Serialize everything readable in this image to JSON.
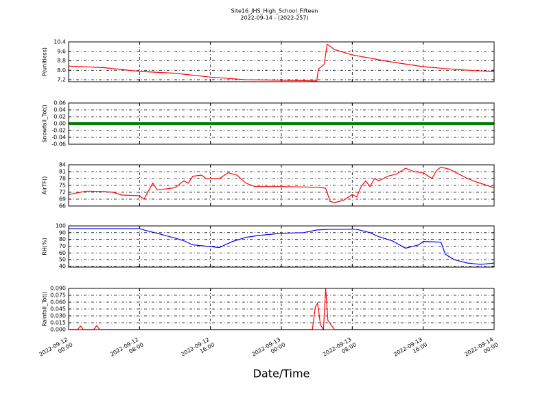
{
  "title": "Site16_JHS_High_School_Fifteen",
  "subtitle": "2022-09-14 - (2022-257)",
  "x_axis": {
    "label": "Date/Time",
    "lim": [
      "2022-09-12 00:00",
      "2022-09-14 00:00"
    ],
    "ticks": [
      {
        "value": "2022-09-12 00:00",
        "label": "2022-09-12 00:00"
      },
      {
        "value": "2022-09-12 08:00",
        "label": "2022-09-12 08:00"
      },
      {
        "value": "2022-09-12 16:00",
        "label": "2022-09-12 16:00"
      },
      {
        "value": "2022-09-13 00:00",
        "label": "2022-09-13 00:00"
      },
      {
        "value": "2022-09-13 08:00",
        "label": "2022-09-13 08:00"
      },
      {
        "value": "2022-09-13 16:00",
        "label": "2022-09-13 16:00"
      },
      {
        "value": "2022-09-14 00:00",
        "label": "2022-09-14 00:00"
      }
    ]
  },
  "chart_data": [
    {
      "type": "line",
      "ylabel": "P(unitless)",
      "color": "#ff0000",
      "grid": true,
      "ylim": [
        7.03,
        10.4
      ],
      "yticks": [
        7.2,
        {
          "value": 8,
          "label": "8.0"
        },
        8.8,
        9.6,
        10.4
      ],
      "x": [
        "2022-09-12 00:00",
        "2022-09-12 04:00",
        "2022-09-12 08:00",
        "2022-09-12 12:00",
        "2022-09-12 16:00",
        "2022-09-12 20:00",
        "2022-09-13 00:00",
        "2022-09-13 04:00",
        "2022-09-13 04:10",
        "2022-09-13 04:50",
        "2022-09-13 05:10",
        "2022-09-13 06:00",
        "2022-09-13 08:00",
        "2022-09-13 12:00",
        "2022-09-13 16:00",
        "2022-09-13 20:00",
        "2022-09-14 00:00"
      ],
      "values": [
        8.35,
        8.22,
        7.9,
        7.75,
        7.42,
        7.2,
        7.15,
        7.1,
        8.1,
        8.5,
        10.2,
        9.75,
        9.3,
        8.75,
        8.3,
        8.05,
        7.88
      ]
    },
    {
      "type": "line",
      "ylabel": "Snowfall_Tot()",
      "color": "#008000",
      "grid": true,
      "thick": true,
      "ylim": [
        -0.06,
        0.06
      ],
      "yticks": [
        {
          "value": -0.06,
          "label": "-0.06"
        },
        {
          "value": -0.04,
          "label": "-0.04"
        },
        {
          "value": -0.02,
          "label": "-0.02"
        },
        {
          "value": 0,
          "label": "0.00"
        },
        {
          "value": 0.02,
          "label": "0.02"
        },
        {
          "value": 0.04,
          "label": "0.04"
        },
        {
          "value": 0.06,
          "label": "0.06"
        }
      ],
      "x": [
        "2022-09-12 00:00",
        "2022-09-12 08:00",
        "2022-09-12 16:00",
        "2022-09-13 00:00",
        "2022-09-13 08:00",
        "2022-09-13 16:00",
        "2022-09-14 00:00"
      ],
      "values": [
        0,
        0,
        0,
        0,
        0,
        0,
        0
      ]
    },
    {
      "type": "line",
      "ylabel": "AirTF()",
      "color": "#ff0000",
      "grid": true,
      "ylim": [
        66,
        84
      ],
      "yticks": [
        66,
        69,
        72,
        75,
        78,
        81,
        84
      ],
      "x": [
        "2022-09-12 00:00",
        "2022-09-12 02:00",
        "2022-09-12 04:00",
        "2022-09-12 05:00",
        "2022-09-12 06:00",
        "2022-09-12 08:00",
        "2022-09-12 08:30",
        "2022-09-12 09:00",
        "2022-09-12 09:30",
        "2022-09-12 10:00",
        "2022-09-12 12:00",
        "2022-09-12 13:00",
        "2022-09-12 13:30",
        "2022-09-12 14:00",
        "2022-09-12 15:00",
        "2022-09-12 15:30",
        "2022-09-12 17:00",
        "2022-09-12 18:00",
        "2022-09-12 19:00",
        "2022-09-12 20:00",
        "2022-09-12 21:00",
        "2022-09-13 00:00",
        "2022-09-13 04:00",
        "2022-09-13 05:00",
        "2022-09-13 05:30",
        "2022-09-13 06:00",
        "2022-09-13 07:00",
        "2022-09-13 08:00",
        "2022-09-13 08:30",
        "2022-09-13 09:00",
        "2022-09-13 09:30",
        "2022-09-13 10:00",
        "2022-09-13 10:30",
        "2022-09-13 11:00",
        "2022-09-13 12:00",
        "2022-09-13 13:00",
        "2022-09-13 14:00",
        "2022-09-13 15:00",
        "2022-09-13 16:00",
        "2022-09-13 17:00",
        "2022-09-13 17:30",
        "2022-09-13 18:00",
        "2022-09-13 19:00",
        "2022-09-13 20:00",
        "2022-09-13 21:00",
        "2022-09-13 22:00",
        "2022-09-14 00:00"
      ],
      "values": [
        71,
        72.5,
        72.3,
        72,
        70.8,
        70.5,
        69,
        72.5,
        76,
        73,
        74,
        77,
        76,
        79,
        79.5,
        78,
        78,
        80.5,
        79.5,
        76,
        74.5,
        74.5,
        74.2,
        73.8,
        68,
        67.5,
        68.5,
        71,
        70,
        74.5,
        77,
        74.5,
        78,
        77,
        79,
        80,
        82.5,
        81,
        80.5,
        78,
        81.5,
        83,
        82,
        80,
        78,
        76.5,
        74
      ]
    },
    {
      "type": "line",
      "ylabel": "RH(%)",
      "color": "#0000ff",
      "grid": true,
      "ylim": [
        39,
        100
      ],
      "yticks": [
        40,
        50,
        60,
        70,
        80,
        90,
        100
      ],
      "x": [
        "2022-09-12 00:00",
        "2022-09-12 08:00",
        "2022-09-12 08:30",
        "2022-09-12 10:00",
        "2022-09-12 12:00",
        "2022-09-12 13:00",
        "2022-09-12 14:00",
        "2022-09-12 15:30",
        "2022-09-12 17:00",
        "2022-09-12 18:30",
        "2022-09-12 20:00",
        "2022-09-12 21:30",
        "2022-09-13 00:00",
        "2022-09-13 02:30",
        "2022-09-13 04:00",
        "2022-09-13 05:30",
        "2022-09-13 08:30",
        "2022-09-13 10:00",
        "2022-09-13 11:00",
        "2022-09-13 12:30",
        "2022-09-13 14:00",
        "2022-09-13 15:30",
        "2022-09-13 16:00",
        "2022-09-13 18:00",
        "2022-09-13 18:30",
        "2022-09-13 19:30",
        "2022-09-13 21:00",
        "2022-09-13 22:30",
        "2022-09-14 00:00"
      ],
      "values": [
        96,
        96,
        94,
        89,
        82,
        78,
        72,
        70,
        68,
        77,
        83,
        86,
        89,
        90,
        94,
        95,
        95,
        90,
        84,
        78,
        67,
        72,
        77,
        76,
        58,
        50,
        45,
        43,
        45
      ]
    },
    {
      "type": "line",
      "ylabel": "Rainfall_Tot()",
      "color": "#ff0000",
      "grid": true,
      "ylim": [
        0,
        0.09
      ],
      "yticks": [
        {
          "value": 0,
          "label": "0.000"
        },
        {
          "value": 0.015,
          "label": "0.015"
        },
        {
          "value": 0.03,
          "label": "0.030"
        },
        {
          "value": 0.045,
          "label": "0.045"
        },
        {
          "value": 0.06,
          "label": "0.060"
        },
        {
          "value": 0.075,
          "label": "0.075"
        },
        {
          "value": 0.09,
          "label": "0.090"
        }
      ],
      "x": [
        "2022-09-12 00:00",
        "2022-09-12 01:00",
        "2022-09-12 01:20",
        "2022-09-12 01:40",
        "2022-09-12 02:50",
        "2022-09-12 03:10",
        "2022-09-12 03:30",
        "2022-09-13 03:30",
        "2022-09-13 03:50",
        "2022-09-13 04:05",
        "2022-09-13 04:25",
        "2022-09-13 04:45",
        "2022-09-13 05:00",
        "2022-09-13 05:15",
        "2022-09-13 06:00",
        "2022-09-14 00:00"
      ],
      "values": [
        0,
        0,
        0.008,
        0,
        0,
        0.009,
        0,
        0,
        0.05,
        0.058,
        0.01,
        0,
        0.09,
        0.02,
        0,
        0
      ]
    }
  ]
}
